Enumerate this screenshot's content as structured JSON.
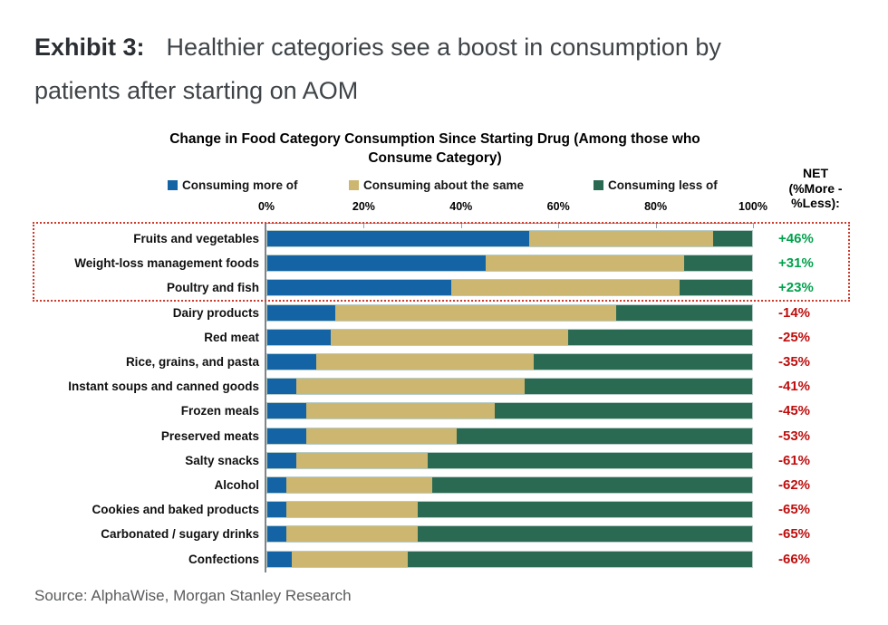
{
  "header": {
    "exhibit_label": "Exhibit 3:",
    "title": "Healthier categories see a boost in consumption by patients after starting on AOM",
    "title_line1": "Healthier categories see a boost in consumption by",
    "title_line2": "patients after starting on AOM"
  },
  "footer": {
    "source": "Source: AlphaWise, Morgan Stanley Research"
  },
  "chart_data": {
    "type": "bar",
    "orientation": "horizontal-stacked",
    "title": "Change in Food Category Consumption Since Starting Drug (Among those who Consume Category)",
    "title_lines": [
      "Change in Food Category Consumption Since Starting Drug (Among those who",
      "Consume Category)"
    ],
    "legend": [
      {
        "label": "Consuming more of",
        "color": "#1464A5"
      },
      {
        "label": "Consuming about the same",
        "color": "#CDB670"
      },
      {
        "label": "Consuming less of",
        "color": "#2A6A52"
      }
    ],
    "legend_position": "top",
    "grid": false,
    "xlim": [
      0,
      100
    ],
    "x_ticks": [
      "0%",
      "20%",
      "40%",
      "60%",
      "80%",
      "100%"
    ],
    "net_header": "NET (%More - %Less):",
    "net_header_lines": [
      "NET",
      "(%More -",
      "%Less):"
    ],
    "categories": [
      "Fruits and vegetables",
      "Weight-loss management foods",
      "Poultry and fish",
      "Dairy products",
      "Red meat",
      "Rice, grains, and pasta",
      "Instant soups and canned goods",
      "Frozen meals",
      "Preserved meats",
      "Salty snacks",
      "Alcohol",
      "Cookies and baked products",
      "Carbonated / sugary drinks",
      "Confections"
    ],
    "series": [
      {
        "name": "Consuming more of",
        "values": [
          54,
          45,
          38,
          14,
          13,
          10,
          6,
          8,
          8,
          6,
          4,
          4,
          4,
          5
        ]
      },
      {
        "name": "Consuming about the same",
        "values": [
          38,
          41,
          47,
          58,
          49,
          45,
          47,
          39,
          31,
          27,
          30,
          27,
          27,
          24
        ]
      },
      {
        "name": "Consuming less of",
        "values": [
          8,
          14,
          15,
          28,
          38,
          45,
          47,
          53,
          61,
          67,
          66,
          69,
          69,
          71
        ]
      }
    ],
    "net": [
      "+46%",
      "+31%",
      "+23%",
      "-14%",
      "-25%",
      "-35%",
      "-41%",
      "-45%",
      "-53%",
      "-61%",
      "-62%",
      "-65%",
      "-65%",
      "-66%"
    ],
    "net_positive_color": "#00A24C",
    "net_negative_color": "#BF0E0E",
    "highlight": {
      "rows": [
        0,
        1,
        2
      ],
      "style": "dotted",
      "border_color": "#CF3A2A"
    }
  }
}
